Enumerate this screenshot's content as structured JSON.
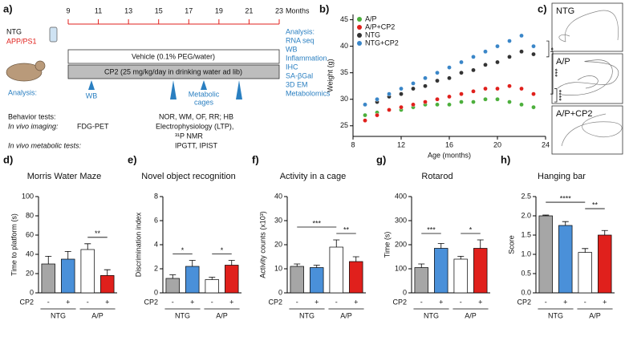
{
  "timeline": {
    "panel": "a)",
    "groups": [
      "NTG",
      "APP/PS1"
    ],
    "months": [
      9,
      11,
      13,
      15,
      17,
      19,
      21,
      23
    ],
    "months_label": "Months",
    "vehicle": "Vehicle (0.1% PEG/water)",
    "treatment": "CP2 (25 mg/kg/day in drinking water ad lib)",
    "analysis_left": "Analysis:",
    "wb": "WB",
    "metabolic": [
      "Metabolic",
      "cages"
    ],
    "analysis_right": [
      "Analysis:",
      "RNA seq",
      "WB",
      "Inflammation",
      "IHC",
      "SA-βGal",
      "3D EM",
      "Metabolomics"
    ],
    "behavior_label": "Behavior tests:",
    "behavior": "NOR, WM, OF, RR; HB",
    "imaging_label": "In vivo imaging:",
    "imaging": "FDG-PET",
    "ephys": "Electrophysiology (LTP),",
    "nmr": "³¹P NMR",
    "metabolic_label": "In vivo metabolic tests:",
    "metabolic_tests": "IPGTT, IPIST"
  },
  "traces": {
    "panel": "c)",
    "labels": [
      "NTG",
      "A/P",
      "A/P+CP2"
    ]
  },
  "chart_data": [
    {
      "type": "scatter",
      "panel": "b)",
      "xlabel": "Age (months)",
      "ylabel": "Weight (g)",
      "x": [
        9,
        10,
        11,
        12,
        13,
        14,
        15,
        16,
        17,
        18,
        19,
        20,
        21,
        22,
        23
      ],
      "series": [
        {
          "name": "A/P",
          "color": "#4caf3c",
          "values": [
            27,
            27.5,
            28,
            28,
            28.5,
            29,
            29,
            29,
            29.5,
            29.5,
            30,
            30,
            29.5,
            29,
            28.5
          ]
        },
        {
          "name": "A/P+CP2",
          "color": "#e0201c",
          "values": [
            26,
            27,
            28,
            28.5,
            29,
            29.5,
            30,
            30.5,
            31,
            31.5,
            32,
            32,
            32.5,
            32,
            31
          ]
        },
        {
          "name": "NTG",
          "color": "#333333",
          "values": [
            29,
            29.5,
            30.5,
            31,
            32,
            32.5,
            33.5,
            34,
            35,
            35.5,
            36.5,
            37,
            38,
            39,
            38.5
          ]
        },
        {
          "name": "NTG+CP2",
          "color": "#3a86c8",
          "values": [
            29,
            30,
            31,
            32,
            33,
            34,
            35,
            36,
            37,
            38,
            39,
            40,
            41,
            42,
            40
          ]
        }
      ],
      "xlim": [
        8,
        24
      ],
      "xticks": [
        8,
        12,
        16,
        20,
        24
      ],
      "ylim": [
        23,
        46
      ],
      "yticks": [
        25,
        30,
        35,
        40,
        45
      ],
      "legend": "top-left",
      "annotations": [
        "*",
        "***",
        "****"
      ]
    },
    {
      "type": "bar",
      "panel": "d)",
      "title": "Morris Water Maze",
      "ylabel": "Time to platform (s)",
      "row_label": "CP2",
      "categories": [
        "-",
        "+",
        "-",
        "+"
      ],
      "groups": [
        "NTG",
        "A/P"
      ],
      "values": [
        30,
        35,
        45,
        18
      ],
      "errors": [
        8,
        8,
        6,
        6
      ],
      "colors": [
        "#a6a6a6",
        "#4a90d9",
        "#ffffff",
        "#e0201c"
      ],
      "ylim": [
        0,
        100
      ],
      "yticks": [
        0,
        20,
        40,
        60,
        80,
        100
      ],
      "annotations": [
        "**"
      ]
    },
    {
      "type": "bar",
      "panel": "e)",
      "title": "Novel object recognition",
      "ylabel": "Discrimination index",
      "row_label": "CP2",
      "categories": [
        "-",
        "+",
        "-",
        "+"
      ],
      "groups": [
        "NTG",
        "A/P"
      ],
      "values": [
        1.2,
        2.2,
        1.1,
        2.3
      ],
      "errors": [
        0.3,
        0.5,
        0.2,
        0.4
      ],
      "colors": [
        "#a6a6a6",
        "#4a90d9",
        "#ffffff",
        "#e0201c"
      ],
      "ylim": [
        0,
        8
      ],
      "yticks": [
        0,
        2,
        4,
        6,
        8
      ],
      "annotations": [
        "*",
        "*"
      ]
    },
    {
      "type": "bar",
      "panel": "f)",
      "title": "Activity in a cage",
      "ylabel": "Activity counts (x10³)",
      "row_label": "CP2",
      "categories": [
        "-",
        "+",
        "-",
        "+"
      ],
      "groups": [
        "NTG",
        "A/P"
      ],
      "values": [
        11,
        10.5,
        19,
        13
      ],
      "errors": [
        1,
        1,
        3,
        2
      ],
      "colors": [
        "#a6a6a6",
        "#4a90d9",
        "#ffffff",
        "#e0201c"
      ],
      "ylim": [
        0,
        40
      ],
      "yticks": [
        0,
        10,
        20,
        30,
        40
      ],
      "annotations": [
        "***",
        "**"
      ]
    },
    {
      "type": "bar",
      "panel": "g)",
      "title": "Rotarod",
      "ylabel": "Time (s)",
      "row_label": "CP2",
      "categories": [
        "-",
        "+",
        "-",
        "+"
      ],
      "groups": [
        "NTG",
        "A/P"
      ],
      "values": [
        105,
        185,
        140,
        185
      ],
      "errors": [
        15,
        20,
        12,
        35
      ],
      "colors": [
        "#a6a6a6",
        "#4a90d9",
        "#ffffff",
        "#e0201c"
      ],
      "ylim": [
        0,
        400
      ],
      "yticks": [
        0,
        100,
        200,
        300,
        400
      ],
      "annotations": [
        "***",
        "*"
      ]
    },
    {
      "type": "bar",
      "panel": "h)",
      "title": "Hanging bar",
      "ylabel": "Score",
      "row_label": "CP2",
      "categories": [
        "-",
        "+",
        "-",
        "+"
      ],
      "groups": [
        "NTG",
        "A/P"
      ],
      "values": [
        2.0,
        1.75,
        1.05,
        1.5
      ],
      "errors": [
        0.02,
        0.1,
        0.1,
        0.12
      ],
      "colors": [
        "#a6a6a6",
        "#4a90d9",
        "#ffffff",
        "#e0201c"
      ],
      "ylim": [
        0,
        2.5
      ],
      "yticks": [
        {
          "value": 0,
          "label": "0.0"
        },
        0.5,
        {
          "value": 1,
          "label": "1.0"
        },
        1.5,
        {
          "value": 2,
          "label": "2.0"
        },
        2.5
      ],
      "annotations": [
        "****",
        "**"
      ]
    }
  ]
}
